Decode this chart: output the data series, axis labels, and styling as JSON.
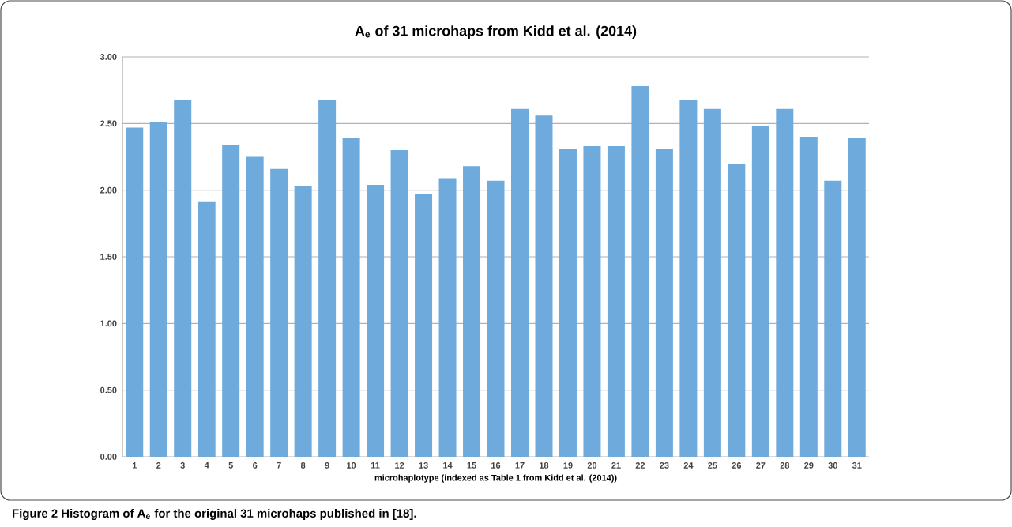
{
  "chart_data": {
    "type": "bar",
    "title": "A$_{e}$ of 31 microhaps from Kidd et al. (2014)",
    "xlabel": "microhaplotype (indexed as Table 1 from Kidd et al. (2014))",
    "annotations": [
      "**Figure 2** **Histogram of A$_{e}$ for the original 31 microhaps published in [18].**"
    ],
    "categories": [
      "1",
      "2",
      "3",
      "4",
      "5",
      "6",
      "7",
      "8",
      "9",
      "10",
      "11",
      "12",
      "13",
      "14",
      "15",
      "16",
      "17",
      "18",
      "19",
      "20",
      "21",
      "22",
      "23",
      "24",
      "25",
      "26",
      "27",
      "28",
      "29",
      "30",
      "31"
    ],
    "values": [
      2.47,
      2.51,
      2.68,
      1.91,
      2.34,
      2.25,
      2.16,
      2.03,
      2.68,
      2.39,
      2.04,
      2.3,
      1.97,
      2.09,
      2.18,
      2.07,
      2.61,
      2.56,
      2.31,
      2.33,
      2.33,
      2.78,
      2.31,
      2.68,
      2.61,
      2.2,
      2.48,
      2.61,
      2.4,
      2.07,
      2.39
    ],
    "color": "#6eaadc",
    "ylim": [
      0,
      3
    ],
    "yticks": [
      {
        "value": 0,
        "label": "0.00"
      },
      {
        "value": 0.5,
        "label": "0.50"
      },
      {
        "value": 1,
        "label": "1.00"
      },
      {
        "value": 1.5,
        "label": "1.50"
      },
      {
        "value": 2,
        "label": "2.00"
      },
      {
        "value": 2.5,
        "label": "2.50"
      },
      {
        "value": 3,
        "label": "3.00"
      }
    ],
    "grid": "y"
  }
}
